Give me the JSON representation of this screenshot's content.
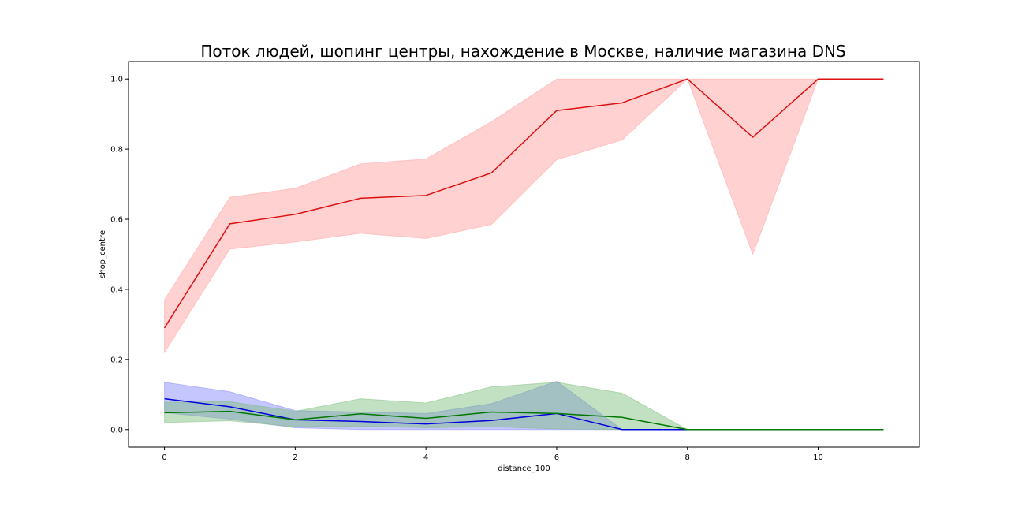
{
  "chart_data": {
    "type": "line",
    "title": "Поток людей, шопинг центры, нахождение в Москве, наличие магазина DNS",
    "xlabel": "distance_100",
    "ylabel": "shop_centre",
    "xlim": [
      -0.55,
      11.55
    ],
    "ylim": [
      -0.05,
      1.05
    ],
    "xticks": [
      "0",
      "2",
      "4",
      "6",
      "8",
      "10"
    ],
    "yticks": [
      "0.0",
      "0.2",
      "0.4",
      "0.6",
      "0.8",
      "1.0"
    ],
    "grid": false,
    "series": [
      {
        "color": "#e41a1c",
        "line_color": "#dd1111",
        "band_color": "#ff9999",
        "x": [
          0,
          1,
          2,
          3,
          4,
          5,
          6,
          7,
          8,
          9,
          10,
          11
        ],
        "y": [
          0.29,
          0.587,
          0.614,
          0.66,
          0.668,
          0.732,
          0.91,
          0.932,
          1.0,
          0.834,
          1.0,
          1.0
        ],
        "lower": [
          0.22,
          0.515,
          0.535,
          0.56,
          0.545,
          0.585,
          0.77,
          0.826,
          1.0,
          0.5,
          1.0,
          1.0
        ],
        "upper": [
          0.37,
          0.663,
          0.688,
          0.758,
          0.772,
          0.878,
          1.0,
          1.0,
          1.0,
          1.0,
          1.0,
          1.0
        ]
      },
      {
        "color": "#0000dd",
        "line_color": "#0000dd",
        "band_color": "#8080ff",
        "x": [
          0,
          1,
          2,
          3,
          4,
          5,
          6,
          7,
          8,
          9,
          10,
          11
        ],
        "y": [
          0.088,
          0.065,
          0.028,
          0.023,
          0.016,
          0.026,
          0.046,
          0.0,
          0.0,
          0.0,
          0.0,
          0.0
        ],
        "lower": [
          0.048,
          0.03,
          0.005,
          0.0,
          0.0,
          0.0,
          0.0,
          0.0,
          0.0,
          0.0,
          0.0,
          0.0
        ],
        "upper": [
          0.135,
          0.108,
          0.054,
          0.05,
          0.046,
          0.074,
          0.138,
          0.0,
          0.0,
          0.0,
          0.0,
          0.0
        ]
      },
      {
        "color": "#007700",
        "line_color": "#007700",
        "band_color": "#77bb77",
        "x": [
          0,
          1,
          2,
          3,
          4,
          5,
          6,
          7,
          8,
          9,
          10,
          11
        ],
        "y": [
          0.048,
          0.052,
          0.028,
          0.045,
          0.032,
          0.05,
          0.046,
          0.035,
          0.0,
          0.0,
          0.0,
          0.0
        ],
        "lower": [
          0.02,
          0.025,
          0.008,
          0.01,
          0.005,
          0.008,
          0.002,
          0.0,
          0.0,
          0.0,
          0.0,
          0.0
        ],
        "upper": [
          0.078,
          0.08,
          0.052,
          0.088,
          0.076,
          0.122,
          0.135,
          0.104,
          0.0,
          0.0,
          0.0,
          0.0
        ]
      }
    ]
  }
}
